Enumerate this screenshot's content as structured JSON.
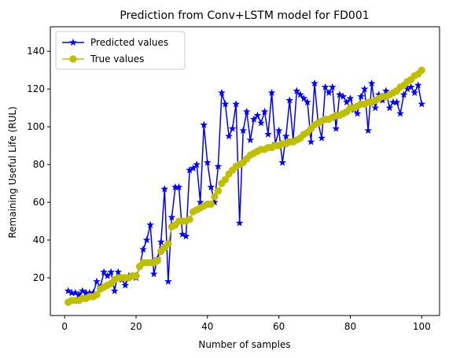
{
  "chart_data": {
    "type": "line",
    "title": "Prediction from Conv+LSTM model for FD001",
    "xlabel": "Number of samples",
    "ylabel": "Remaining Useful Life (RUL)",
    "xlim": [
      -4,
      105
    ],
    "ylim": [
      0,
      153
    ],
    "xticks": [
      0,
      20,
      40,
      60,
      80,
      100
    ],
    "yticks": [
      20,
      40,
      60,
      80,
      100,
      120,
      140
    ],
    "grid": false,
    "legend_position": "top-left",
    "x": [
      1,
      2,
      3,
      4,
      5,
      6,
      7,
      8,
      9,
      10,
      11,
      12,
      13,
      14,
      15,
      16,
      17,
      18,
      19,
      20,
      21,
      22,
      23,
      24,
      25,
      26,
      27,
      28,
      29,
      30,
      31,
      32,
      33,
      34,
      35,
      36,
      37,
      38,
      39,
      40,
      41,
      42,
      43,
      44,
      45,
      46,
      47,
      48,
      49,
      50,
      51,
      52,
      53,
      54,
      55,
      56,
      57,
      58,
      59,
      60,
      61,
      62,
      63,
      64,
      65,
      66,
      67,
      68,
      69,
      70,
      71,
      72,
      73,
      74,
      75,
      76,
      77,
      78,
      79,
      80,
      81,
      82,
      83,
      84,
      85,
      86,
      87,
      88,
      89,
      90,
      91,
      92,
      93,
      94,
      95,
      96,
      97,
      98,
      99,
      100
    ],
    "series": [
      {
        "name": "Predicted values",
        "color": "#0000ff",
        "marker": "star",
        "values": [
          13,
          12,
          12,
          11,
          13,
          12,
          12,
          12,
          18,
          15,
          23,
          21,
          23,
          13,
          23,
          19,
          16,
          21,
          21,
          20,
          26,
          35,
          40,
          48,
          22,
          30,
          39,
          67,
          18,
          52,
          68,
          68,
          43,
          42,
          77,
          78,
          80,
          60,
          101,
          81,
          68,
          60,
          79,
          118,
          112,
          95,
          99,
          112,
          49,
          98,
          108,
          93,
          104,
          106,
          102,
          108,
          96,
          118,
          91,
          98,
          81,
          95,
          114,
          93,
          119,
          117,
          115,
          113,
          92,
          123,
          102,
          94,
          121,
          118,
          121,
          99,
          117,
          116,
          113,
          115,
          109,
          107,
          116,
          120,
          98,
          123,
          110,
          117,
          114,
          119,
          110,
          113,
          113,
          107,
          117,
          120,
          121,
          118,
          122,
          112
        ]
      },
      {
        "name": "True values",
        "color": "#bfbf00",
        "marker": "circle",
        "values": [
          7,
          8,
          8,
          8,
          9,
          9,
          10,
          10,
          11,
          14,
          15,
          16,
          17,
          19,
          20,
          20,
          20,
          20,
          21,
          21,
          26,
          28,
          28,
          28,
          28,
          29,
          34,
          36,
          38,
          47,
          48,
          50,
          50,
          50,
          51,
          55,
          56,
          57,
          58,
          59,
          59,
          63,
          66,
          70,
          72,
          75,
          77,
          79,
          80,
          81,
          83,
          85,
          86,
          87,
          88,
          88,
          89,
          89,
          90,
          90,
          91,
          91,
          92,
          92,
          93,
          94,
          96,
          97,
          99,
          101,
          102,
          103,
          104,
          104,
          105,
          106,
          106,
          107,
          108,
          110,
          110,
          111,
          112,
          112,
          113,
          113,
          114,
          115,
          116,
          116,
          117,
          118,
          119,
          121,
          122,
          124,
          125,
          127,
          128,
          130
        ]
      }
    ]
  },
  "colors": {
    "predicted": "#0000ff",
    "true": "#bfbf00",
    "axis": "#000000",
    "background": "#ffffff"
  }
}
